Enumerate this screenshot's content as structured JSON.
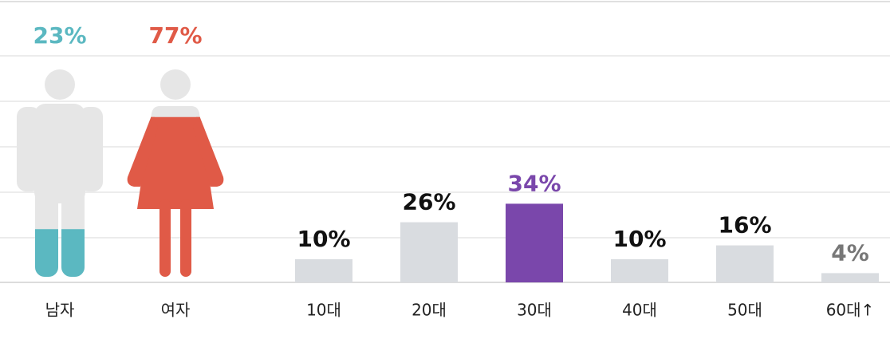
{
  "chart_data": [
    {
      "type": "pictogram",
      "categories": [
        "남자",
        "여자"
      ],
      "values": [
        23,
        77
      ],
      "value_labels": [
        "23%",
        "77%"
      ],
      "colors": [
        "#5bb8c1",
        "#e05a47"
      ],
      "ylim": [
        0,
        100
      ]
    },
    {
      "type": "bar",
      "categories": [
        "10대",
        "20대",
        "30대",
        "40대",
        "50대",
        "60대↑"
      ],
      "values": [
        10,
        26,
        34,
        10,
        16,
        4
      ],
      "value_labels": [
        "10%",
        "26%",
        "34%",
        "10%",
        "16%",
        "4%"
      ],
      "colors": [
        "#d9dce0",
        "#d9dce0",
        "#7a47ab",
        "#d9dce0",
        "#d9dce0",
        "#d9dce0"
      ],
      "label_colors": [
        "#111111",
        "#111111",
        "#7a47ab",
        "#111111",
        "#111111",
        "#777777"
      ],
      "ylim": [
        0,
        100
      ]
    }
  ]
}
